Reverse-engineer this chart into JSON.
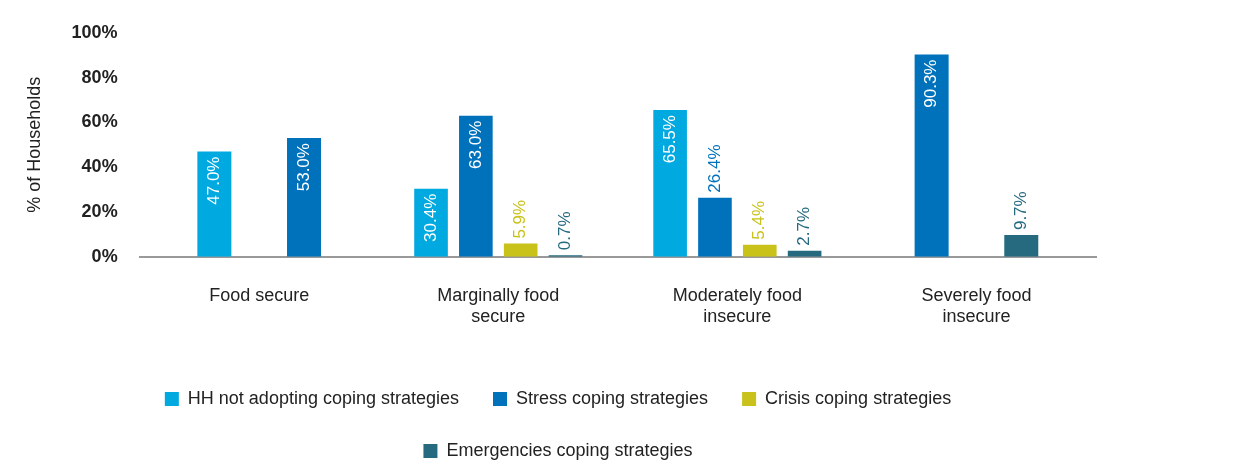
{
  "chart_data": {
    "type": "bar",
    "ylabel": "% of Households",
    "categories": [
      "Food secure",
      "Marginally food secure",
      "Moderately food insecure",
      "Severely food insecure"
    ],
    "ylim": [
      0,
      100
    ],
    "yticks": [
      {
        "value": 0,
        "label": "0%"
      },
      {
        "value": 20,
        "label": "20%"
      },
      {
        "value": 40,
        "label": "40%"
      },
      {
        "value": 60,
        "label": "60%"
      },
      {
        "value": 80,
        "label": "80%"
      },
      {
        "value": 100,
        "label": "100%"
      }
    ],
    "grid": false,
    "legend": "bottom",
    "series": [
      {
        "name": "HH not adopting coping strategies",
        "color": "#00a9e0",
        "values": [
          47.0,
          30.4,
          65.5,
          null
        ],
        "value_labels": [
          "47.0%",
          "30.4%",
          "65.5%",
          null
        ]
      },
      {
        "name": "Stress coping strategies",
        "color": "#0072bc",
        "values": [
          53.0,
          63.0,
          26.4,
          90.3
        ],
        "value_labels": [
          "53.0%",
          "63.0%",
          "26.4%",
          "90.3%"
        ]
      },
      {
        "name": "Crisis coping strategies",
        "color": "#c9c21a",
        "values": [
          null,
          5.9,
          5.4,
          null
        ],
        "value_labels": [
          null,
          "5.9%",
          "5.4%",
          null
        ]
      },
      {
        "name": "Emergencies coping strategies",
        "color": "#266a80",
        "values": [
          null,
          0.7,
          2.7,
          9.7
        ],
        "value_labels": [
          null,
          "0.7%",
          "2.7%",
          "9.7%"
        ]
      }
    ]
  }
}
